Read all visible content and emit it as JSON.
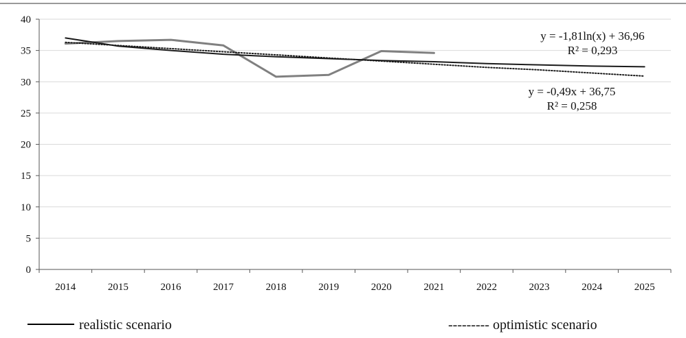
{
  "chart_data": {
    "type": "line",
    "categories": [
      "2014",
      "2015",
      "2016",
      "2017",
      "2018",
      "2019",
      "2020",
      "2021",
      "2022",
      "2023",
      "2024",
      "2025"
    ],
    "ylim": [
      0,
      40
    ],
    "y_ticks": [
      0,
      5,
      10,
      15,
      20,
      25,
      30,
      35,
      40
    ],
    "grid": true,
    "series": [
      {
        "values": [
          36.1,
          36.5,
          36.7,
          35.8,
          30.8,
          31.1,
          34.9,
          34.6,
          null,
          null,
          null,
          null
        ],
        "color": "#808080"
      },
      {
        "name": "realistic scenario",
        "values": [
          37.0,
          35.7,
          35.0,
          34.4,
          34.0,
          33.7,
          33.4,
          33.2,
          32.9,
          32.7,
          32.5,
          32.4
        ],
        "color": "#1a1a1a",
        "style": "solid"
      },
      {
        "name": "optimistic scenario",
        "values": [
          36.3,
          35.8,
          35.3,
          34.8,
          34.3,
          33.8,
          33.3,
          32.8,
          32.3,
          31.9,
          31.4,
          30.9
        ],
        "color": "#1a1a1a",
        "style": "dotted"
      }
    ],
    "annotations": [
      {
        "line1": "y = -1,81ln(x) + 36,96",
        "line2": "R² = 0,293"
      },
      {
        "line1": "y = -0,49x + 36,75",
        "line2": "R² = 0,258"
      }
    ],
    "legend": {
      "placement": "bottom",
      "realistic": "realistic scenario",
      "optimistic": "--------- optimistic scenario"
    }
  }
}
